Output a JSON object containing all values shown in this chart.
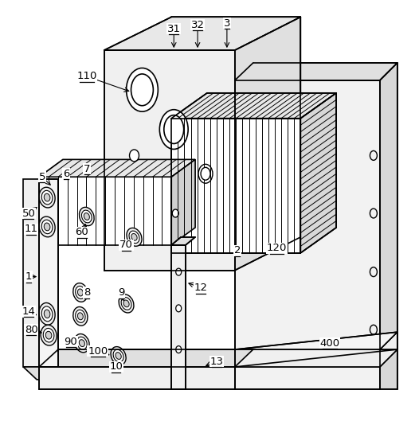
{
  "background_color": "#ffffff",
  "line_color": "#000000",
  "figsize": [
    5.26,
    5.39
  ],
  "dpi": 100,
  "labels": [
    [
      "110",
      108,
      95
    ],
    [
      "31",
      218,
      35
    ],
    [
      "32",
      248,
      30
    ],
    [
      "3",
      285,
      28
    ],
    [
      "5",
      52,
      222
    ],
    [
      "6",
      82,
      218
    ],
    [
      "7",
      108,
      212
    ],
    [
      "50",
      35,
      268
    ],
    [
      "11",
      38,
      288
    ],
    [
      "60",
      102,
      292
    ],
    [
      "70",
      158,
      308
    ],
    [
      "1",
      35,
      348
    ],
    [
      "8",
      108,
      368
    ],
    [
      "9",
      152,
      368
    ],
    [
      "14",
      35,
      392
    ],
    [
      "80",
      38,
      415
    ],
    [
      "90",
      88,
      430
    ],
    [
      "100",
      122,
      442
    ],
    [
      "10",
      145,
      462
    ],
    [
      "2",
      298,
      315
    ],
    [
      "120",
      348,
      312
    ],
    [
      "12",
      252,
      362
    ],
    [
      "13",
      272,
      455
    ],
    [
      "400",
      415,
      432
    ]
  ]
}
